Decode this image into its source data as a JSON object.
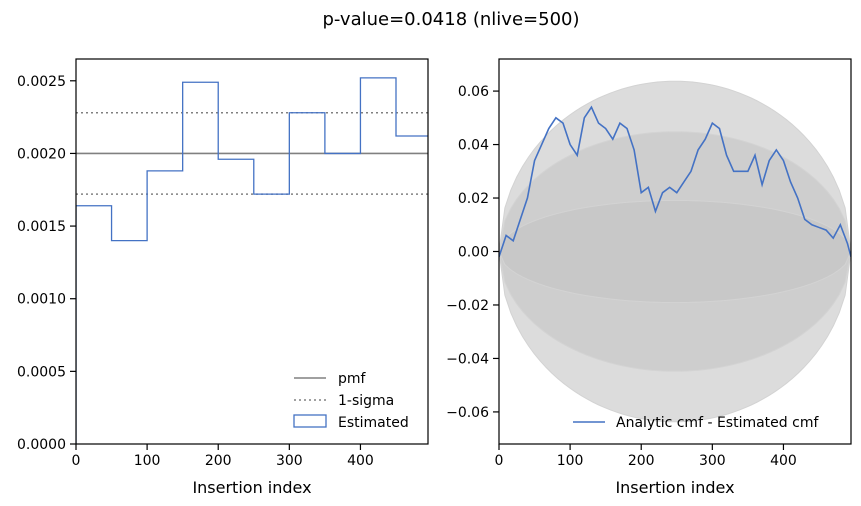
{
  "figure": {
    "suptitle": "p-value=0.0418 (nlive=500)"
  },
  "colors": {
    "pmf": "#808080",
    "estimated": "#4472c4",
    "band": "#c0c0c0",
    "band_edge": "#d3d3d3"
  },
  "chart_data": [
    {
      "type": "histogram",
      "xlabel": "Insertion index",
      "ylabel": "",
      "xlim": [
        0,
        495
      ],
      "ylim": [
        0,
        0.00265
      ],
      "xticks": [
        0,
        100,
        200,
        300,
        400
      ],
      "yticks": [
        0,
        0.0005,
        0.001,
        0.0015,
        0.002,
        0.0025
      ],
      "xtick_labels": [
        "0",
        "100",
        "200",
        "300",
        "400"
      ],
      "ytick_labels": [
        "0.0000",
        "0.0005",
        "0.0010",
        "0.0015",
        "0.0020",
        "0.0025"
      ],
      "pmf": 0.002,
      "one_sigma": [
        0.00172,
        0.00228
      ],
      "bin_edges": [
        0,
        50,
        100,
        150,
        200,
        250,
        300,
        350,
        400,
        450,
        495
      ],
      "bin_values": [
        0.00164,
        0.0014,
        0.00188,
        0.00249,
        0.00196,
        0.00172,
        0.00228,
        0.002,
        0.00252,
        0.00212
      ],
      "legend": {
        "placement": "lower-right",
        "entries": [
          "pmf",
          "1-sigma",
          "Estimated"
        ]
      }
    },
    {
      "type": "line",
      "xlabel": "Insertion index",
      "ylabel": "",
      "xlim": [
        0,
        495
      ],
      "ylim": [
        -0.072,
        0.072
      ],
      "xticks": [
        0,
        100,
        200,
        300,
        400
      ],
      "yticks": [
        -0.06,
        -0.04,
        -0.02,
        0.0,
        0.02,
        0.04,
        0.06
      ],
      "xtick_labels": [
        "0",
        "100",
        "200",
        "300",
        "400"
      ],
      "ytick_labels": [
        "−0.06",
        "−0.04",
        "−0.02",
        "0.00",
        "0.02",
        "0.04",
        "0.06"
      ],
      "bands": [
        0.0191,
        0.0448,
        0.0637
      ],
      "series": [
        {
          "name": "Analytic cmf - Estimated cmf",
          "x": [
            0,
            10,
            20,
            30,
            40,
            50,
            60,
            70,
            80,
            90,
            100,
            110,
            120,
            130,
            140,
            150,
            160,
            170,
            180,
            190,
            200,
            210,
            220,
            230,
            240,
            250,
            260,
            270,
            280,
            290,
            300,
            310,
            320,
            330,
            340,
            350,
            360,
            370,
            380,
            390,
            400,
            410,
            420,
            430,
            440,
            450,
            460,
            470,
            480,
            490,
            495
          ],
          "y": [
            -0.002,
            0.006,
            0.004,
            0.012,
            0.02,
            0.034,
            0.04,
            0.046,
            0.05,
            0.048,
            0.04,
            0.036,
            0.05,
            0.054,
            0.048,
            0.046,
            0.042,
            0.048,
            0.046,
            0.038,
            0.022,
            0.024,
            0.015,
            0.022,
            0.024,
            0.022,
            0.026,
            0.03,
            0.038,
            0.042,
            0.048,
            0.046,
            0.036,
            0.03,
            0.03,
            0.03,
            0.036,
            0.025,
            0.034,
            0.038,
            0.034,
            0.026,
            0.02,
            0.012,
            0.01,
            0.009,
            0.008,
            0.005,
            0.01,
            0.003,
            -0.002
          ]
        }
      ],
      "legend": {
        "placement": "lower-right",
        "entries": [
          "Analytic cmf - Estimated cmf"
        ]
      }
    }
  ]
}
